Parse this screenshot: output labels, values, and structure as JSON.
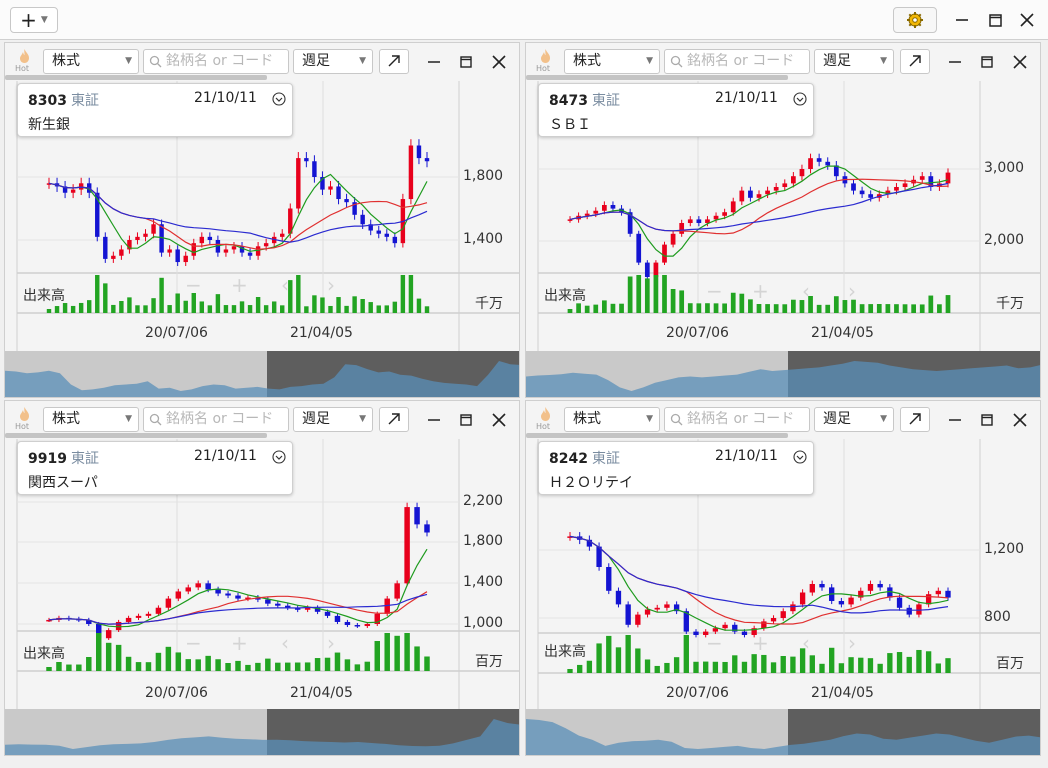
{
  "toolbar": {
    "add_label": "+",
    "gear_icon": "gear-icon",
    "window_controls": [
      "minimize-icon",
      "maximize-icon",
      "close-icon"
    ]
  },
  "panel_common": {
    "type_label": "株式",
    "search_placeholder": "銘柄名 or コード",
    "period_label": "週足",
    "hot_label": "Hot",
    "volume_label": "出来高",
    "nav_buttons": [
      "−",
      "+",
      "‹",
      "›"
    ],
    "x_labels": [
      "20/07/06",
      "21/04/05"
    ]
  },
  "colors": {
    "up": "#e8001c",
    "down": "#1414d2",
    "ma_short": "#1e9b1e",
    "ma_mid": "#e03030",
    "ma_long": "#2b2bd0",
    "volume": "#22a422"
  },
  "panels": [
    {
      "code": "8303",
      "market": "東証",
      "date": "21/10/11",
      "name": "新生銀",
      "y_ticks": [
        "1,800",
        "1,400"
      ],
      "volume_unit": "千万",
      "chart_data": {
        "type": "candlestick",
        "y_ticks": [
          1800,
          1400
        ],
        "close": [
          1760,
          1740,
          1700,
          1720,
          1760,
          1700,
          1420,
          1280,
          1300,
          1340,
          1400,
          1420,
          1440,
          1500,
          1320,
          1340,
          1260,
          1300,
          1380,
          1420,
          1400,
          1320,
          1340,
          1360,
          1320,
          1300,
          1360,
          1380,
          1420,
          1440,
          1600,
          1920,
          1900,
          1800,
          1720,
          1740,
          1660,
          1640,
          1560,
          1500,
          1460,
          1440,
          1420,
          1380,
          1660,
          2000,
          1920,
          1900
        ]
      }
    },
    {
      "code": "8473",
      "market": "東証",
      "date": "21/10/11",
      "name": "ＳＢＩ",
      "y_ticks": [
        "3,000",
        "2,000"
      ],
      "volume_unit": "千万",
      "chart_data": {
        "type": "candlestick",
        "y_ticks": [
          3000,
          2000
        ],
        "close": [
          2300,
          2350,
          2380,
          2420,
          2500,
          2450,
          2400,
          2100,
          1700,
          1500,
          1700,
          1950,
          2100,
          2250,
          2300,
          2250,
          2300,
          2350,
          2400,
          2550,
          2700,
          2600,
          2650,
          2700,
          2750,
          2800,
          2900,
          3000,
          3150,
          3100,
          3050,
          2900,
          2800,
          2700,
          2650,
          2600,
          2650,
          2700,
          2750,
          2800,
          2850,
          2900,
          2750,
          2800,
          2950
        ]
      }
    },
    {
      "code": "9919",
      "market": "東証",
      "date": "21/10/11",
      "name": "関西スーパ",
      "y_ticks": [
        "2,200",
        "1,800",
        "1,400",
        "1,000"
      ],
      "volume_unit": "百万",
      "chart_data": {
        "type": "candlestick",
        "y_ticks": [
          2200,
          1800,
          1400,
          1000
        ],
        "close": [
          1040,
          1060,
          1050,
          1040,
          1000,
          860,
          940,
          1020,
          1060,
          1080,
          1100,
          1160,
          1250,
          1320,
          1360,
          1400,
          1340,
          1300,
          1280,
          1250,
          1260,
          1240,
          1200,
          1180,
          1160,
          1140,
          1160,
          1120,
          1080,
          1020,
          990,
          980,
          1000,
          1100,
          1250,
          1400,
          2150,
          1980,
          1900
        ]
      }
    },
    {
      "code": "8242",
      "market": "東証",
      "date": "21/10/11",
      "name": "Ｈ２Ｏリテイ",
      "y_ticks": [
        "1,200",
        "800"
      ],
      "volume_unit": "百万",
      "chart_data": {
        "type": "candlestick",
        "y_ticks": [
          1200,
          800
        ],
        "close": [
          1280,
          1260,
          1220,
          1100,
          960,
          880,
          760,
          820,
          850,
          860,
          880,
          840,
          720,
          700,
          720,
          740,
          760,
          720,
          700,
          740,
          780,
          800,
          840,
          880,
          950,
          1000,
          980,
          900,
          880,
          920,
          960,
          1000,
          980,
          920,
          860,
          820,
          880,
          940,
          960,
          920
        ]
      }
    }
  ]
}
